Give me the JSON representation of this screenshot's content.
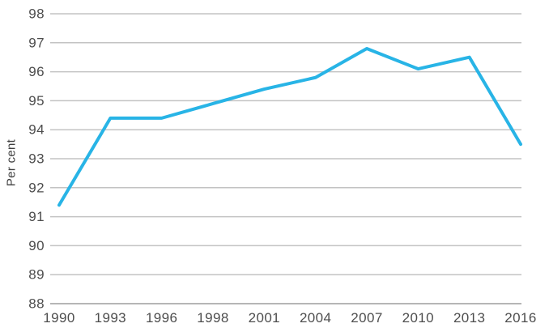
{
  "chart_data": {
    "type": "line",
    "title": "",
    "xlabel": "",
    "ylabel": "Per cent",
    "categories": [
      "1990",
      "1993",
      "1996",
      "1998",
      "2001",
      "2004",
      "2007",
      "2010",
      "2013",
      "2016"
    ],
    "series": [
      {
        "name": "Per cent",
        "values": [
          91.4,
          94.4,
          94.4,
          94.9,
          95.4,
          95.8,
          96.8,
          96.1,
          96.5,
          93.5
        ],
        "color": "#28b4e6"
      }
    ],
    "ylim": [
      88,
      98
    ],
    "ytick_step": 1,
    "grid": "horizontal-only",
    "legend_position": "none"
  },
  "style": {
    "background_color": "#ffffff",
    "grid_color": "#c3c3c3",
    "baseline_color": "#9e9e9e",
    "tick_label_color": "#4d4d4d",
    "axis_label_color": "#404040",
    "line_color": "#28b4e6"
  }
}
